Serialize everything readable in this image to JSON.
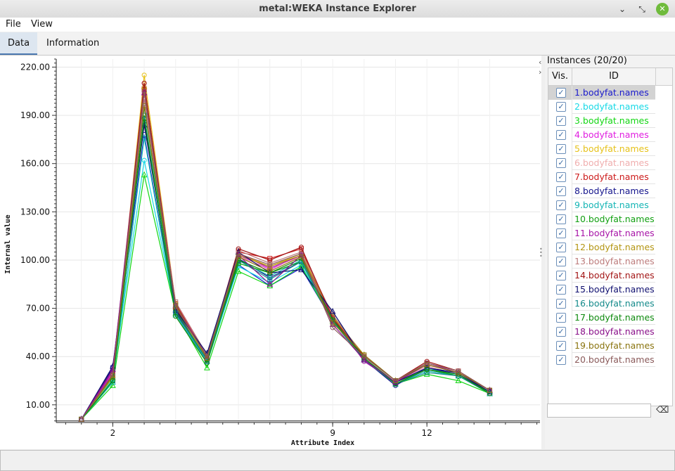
{
  "window": {
    "title": "metal:WEKA Instance Explorer"
  },
  "menu": {
    "file": "File",
    "view": "View"
  },
  "tabs": {
    "data": "Data",
    "information": "Information"
  },
  "side_panel": {
    "title": "Instances (20/20)",
    "col_vis": "Vis.",
    "col_id": "ID",
    "search_value": "",
    "instances": [
      {
        "label": "1.bodyfat.names",
        "color": "#1a1acc",
        "visible": true
      },
      {
        "label": "2.bodyfat.names",
        "color": "#17d9e6",
        "visible": true
      },
      {
        "label": "3.bodyfat.names",
        "color": "#13d613",
        "visible": true
      },
      {
        "label": "4.bodyfat.names",
        "color": "#e01ee0",
        "visible": true
      },
      {
        "label": "5.bodyfat.names",
        "color": "#e6c21a",
        "visible": true
      },
      {
        "label": "6.bodyfat.names",
        "color": "#f0aeae",
        "visible": true
      },
      {
        "label": "7.bodyfat.names",
        "color": "#cc1a1a",
        "visible": true
      },
      {
        "label": "8.bodyfat.names",
        "color": "#14148c",
        "visible": true
      },
      {
        "label": "9.bodyfat.names",
        "color": "#15b5b5",
        "visible": true
      },
      {
        "label": "10.bodyfat.names",
        "color": "#12a012",
        "visible": true
      },
      {
        "label": "11.bodyfat.names",
        "color": "#a714a7",
        "visible": true
      },
      {
        "label": "12.bodyfat.names",
        "color": "#b39512",
        "visible": true
      },
      {
        "label": "13.bodyfat.names",
        "color": "#bd7c7c",
        "visible": true
      },
      {
        "label": "14.bodyfat.names",
        "color": "#a31616",
        "visible": true
      },
      {
        "label": "15.bodyfat.names",
        "color": "#101070",
        "visible": true
      },
      {
        "label": "16.bodyfat.names",
        "color": "#148a8a",
        "visible": true
      },
      {
        "label": "17.bodyfat.names",
        "color": "#0e8a0e",
        "visible": true
      },
      {
        "label": "18.bodyfat.names",
        "color": "#8a108a",
        "visible": true
      },
      {
        "label": "19.bodyfat.names",
        "color": "#8a740f",
        "visible": true
      },
      {
        "label": "20.bodyfat.names",
        "color": "#8a5a5a",
        "visible": true
      }
    ]
  },
  "chart_data": {
    "type": "line",
    "xlabel": "Attribute Index",
    "ylabel": "Internal value",
    "xlim": [
      0.2,
      15.6
    ],
    "ylim": [
      -1,
      225
    ],
    "x": [
      1,
      2,
      3,
      4,
      5,
      6,
      7,
      8,
      9,
      10,
      11,
      12,
      13,
      14
    ],
    "x_ticks": [
      2,
      9,
      12
    ],
    "y_ticks": [
      "10.00",
      "40.00",
      "70.00",
      "100.00",
      "130.00",
      "160.00",
      "190.00",
      "220.00"
    ],
    "grid": true,
    "series": [
      {
        "name": "1.bodyfat.names",
        "color": "#1a1acc",
        "values": [
          1,
          33,
          178,
          67,
          38,
          97,
          84,
          95,
          62,
          38,
          23,
          32,
          28,
          18
        ]
      },
      {
        "name": "2.bodyfat.names",
        "color": "#17d9e6",
        "values": [
          1,
          26,
          162,
          68,
          36,
          96,
          86,
          97,
          63,
          38,
          24,
          33,
          28,
          18
        ]
      },
      {
        "name": "3.bodyfat.names",
        "color": "#13d613",
        "values": [
          1,
          22,
          153,
          67,
          33,
          93,
          84,
          96,
          62,
          38,
          23,
          29,
          25,
          17
        ]
      },
      {
        "name": "4.bodyfat.names",
        "color": "#e01ee0",
        "values": [
          1,
          30,
          205,
          70,
          37,
          103,
          94,
          103,
          64,
          39,
          24,
          34,
          29,
          18
        ]
      },
      {
        "name": "5.bodyfat.names",
        "color": "#e6c21a",
        "values": [
          1,
          27,
          215,
          73,
          39,
          104,
          96,
          104,
          65,
          40,
          25,
          35,
          30,
          19
        ]
      },
      {
        "name": "6.bodyfat.names",
        "color": "#f0aeae",
        "values": [
          1,
          28,
          209,
          71,
          38,
          102,
          95,
          102,
          64,
          39,
          24,
          34,
          29,
          18
        ]
      },
      {
        "name": "7.bodyfat.names",
        "color": "#cc1a1a",
        "values": [
          1,
          29,
          206,
          73,
          40,
          105,
          101,
          107,
          62,
          40,
          25,
          36,
          31,
          19
        ]
      },
      {
        "name": "8.bodyfat.names",
        "color": "#14148c",
        "values": [
          1,
          33,
          186,
          68,
          37,
          101,
          89,
          99,
          62,
          38,
          22,
          33,
          29,
          18
        ]
      },
      {
        "name": "9.bodyfat.names",
        "color": "#15b5b5",
        "values": [
          1,
          24,
          176,
          66,
          37,
          100,
          90,
          100,
          63,
          38,
          23,
          31,
          28,
          17
        ]
      },
      {
        "name": "10.bodyfat.names",
        "color": "#12a012",
        "values": [
          1,
          25,
          195,
          69,
          38,
          98,
          92,
          99,
          62,
          39,
          24,
          32,
          28,
          18
        ]
      },
      {
        "name": "11.bodyfat.names",
        "color": "#a714a7",
        "values": [
          1,
          31,
          210,
          72,
          40,
          104,
          95,
          103,
          64,
          37,
          24,
          36,
          30,
          19
        ]
      },
      {
        "name": "12.bodyfat.names",
        "color": "#b39512",
        "values": [
          1,
          27,
          208,
          71,
          39,
          103,
          96,
          103,
          65,
          41,
          25,
          35,
          30,
          19
        ]
      },
      {
        "name": "13.bodyfat.names",
        "color": "#bd7c7c",
        "values": [
          1,
          28,
          200,
          74,
          41,
          106,
          98,
          105,
          66,
          40,
          25,
          36,
          31,
          19
        ]
      },
      {
        "name": "14.bodyfat.names",
        "color": "#a31616",
        "values": [
          1,
          29,
          210,
          70,
          40,
          107,
          100,
          108,
          64,
          40,
          25,
          37,
          31,
          19
        ]
      },
      {
        "name": "15.bodyfat.names",
        "color": "#101070",
        "values": [
          1,
          34,
          184,
          69,
          42,
          105,
          92,
          94,
          68,
          38,
          24,
          33,
          30,
          18
        ]
      },
      {
        "name": "16.bodyfat.names",
        "color": "#148a8a",
        "values": [
          1,
          25,
          190,
          67,
          38,
          100,
          88,
          99,
          62,
          38,
          23,
          30,
          28,
          17
        ]
      },
      {
        "name": "17.bodyfat.names",
        "color": "#0e8a0e",
        "values": [
          1,
          25,
          188,
          65,
          36,
          100,
          92,
          101,
          63,
          39,
          23,
          32,
          29,
          17
        ]
      },
      {
        "name": "18.bodyfat.names",
        "color": "#8a108a",
        "values": [
          1,
          32,
          204,
          72,
          39,
          103,
          85,
          103,
          60,
          38,
          24,
          35,
          30,
          19
        ]
      },
      {
        "name": "19.bodyfat.names",
        "color": "#8a740f",
        "values": [
          1,
          28,
          196,
          72,
          39,
          102,
          93,
          102,
          61,
          41,
          25,
          35,
          30,
          19
        ]
      },
      {
        "name": "20.bodyfat.names",
        "color": "#8a5a5a",
        "values": [
          1,
          29,
          205,
          71,
          40,
          104,
          97,
          104,
          58,
          40,
          25,
          36,
          31,
          19
        ]
      }
    ]
  }
}
